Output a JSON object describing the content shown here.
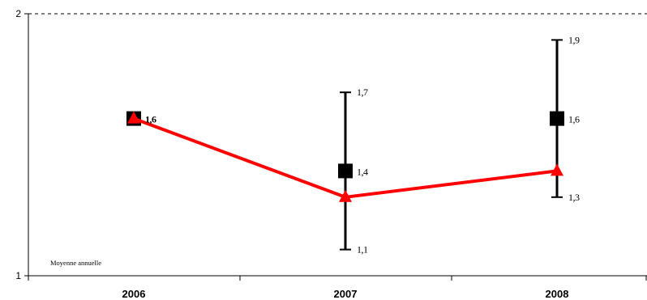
{
  "chart_data": {
    "type": "line",
    "categories": [
      "2006",
      "2007",
      "2008"
    ],
    "ylim": [
      1,
      2
    ],
    "yticks": [
      "1",
      "2"
    ],
    "grid": "dashed line at y=2 only",
    "annotation": "Moyenne annuelle",
    "series": [
      {
        "marker": "square",
        "color": "#000000",
        "values": [
          1.6,
          1.4,
          1.6
        ],
        "value_labels": [
          "1,6",
          "1,4",
          "1,6"
        ]
      },
      {
        "marker": "triangle",
        "color": "#ff0000",
        "values": [
          1.6,
          1.3,
          1.4
        ]
      }
    ],
    "error_bars": [
      null,
      {
        "low": 1.1,
        "high": 1.7,
        "low_label": "1,1",
        "high_label": "1,7"
      },
      {
        "low": 1.3,
        "high": 1.9,
        "low_label": "1,3",
        "high_label": "1,9"
      }
    ]
  }
}
